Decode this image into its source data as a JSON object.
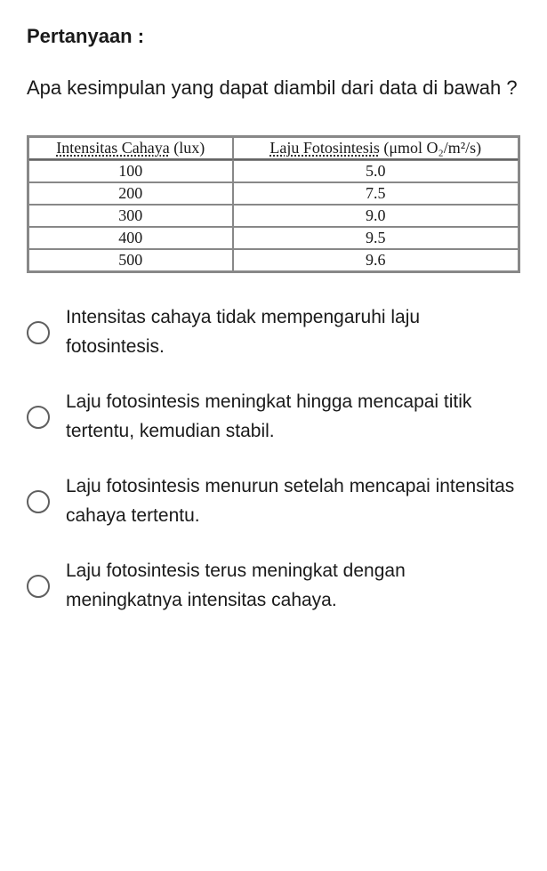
{
  "heading": "Pertanyaan :",
  "question": "Apa kesimpulan yang dapat diambil dari data di bawah ?",
  "table": {
    "columns": [
      {
        "plain": "Intensitas Cahaya",
        "suffix": " (lux)"
      },
      {
        "plain": "Laju Fotosintesis",
        "suffix": " (μmol O₂/m²/s)"
      }
    ],
    "rows": [
      [
        "100",
        "5.0"
      ],
      [
        "200",
        "7.5"
      ],
      [
        "300",
        "9.0"
      ],
      [
        "400",
        "9.5"
      ],
      [
        "500",
        "9.6"
      ]
    ],
    "border_color": "#888888",
    "header_font": "Times New Roman",
    "cell_fontsize": 18,
    "background_color": "#ffffff"
  },
  "options": [
    "Intensitas cahaya tidak mempengaruhi laju fotosintesis.",
    "Laju fotosintesis meningkat hingga mencapai titik tertentu, kemudian stabil.",
    "Laju fotosintesis menurun setelah mencapai intensitas cahaya tertentu.",
    "Laju fotosintesis terus meningkat dengan meningkatnya intensitas cahaya."
  ],
  "colors": {
    "text": "#1a1a1a",
    "radio_border": "#5f5f5f",
    "background": "#ffffff"
  }
}
